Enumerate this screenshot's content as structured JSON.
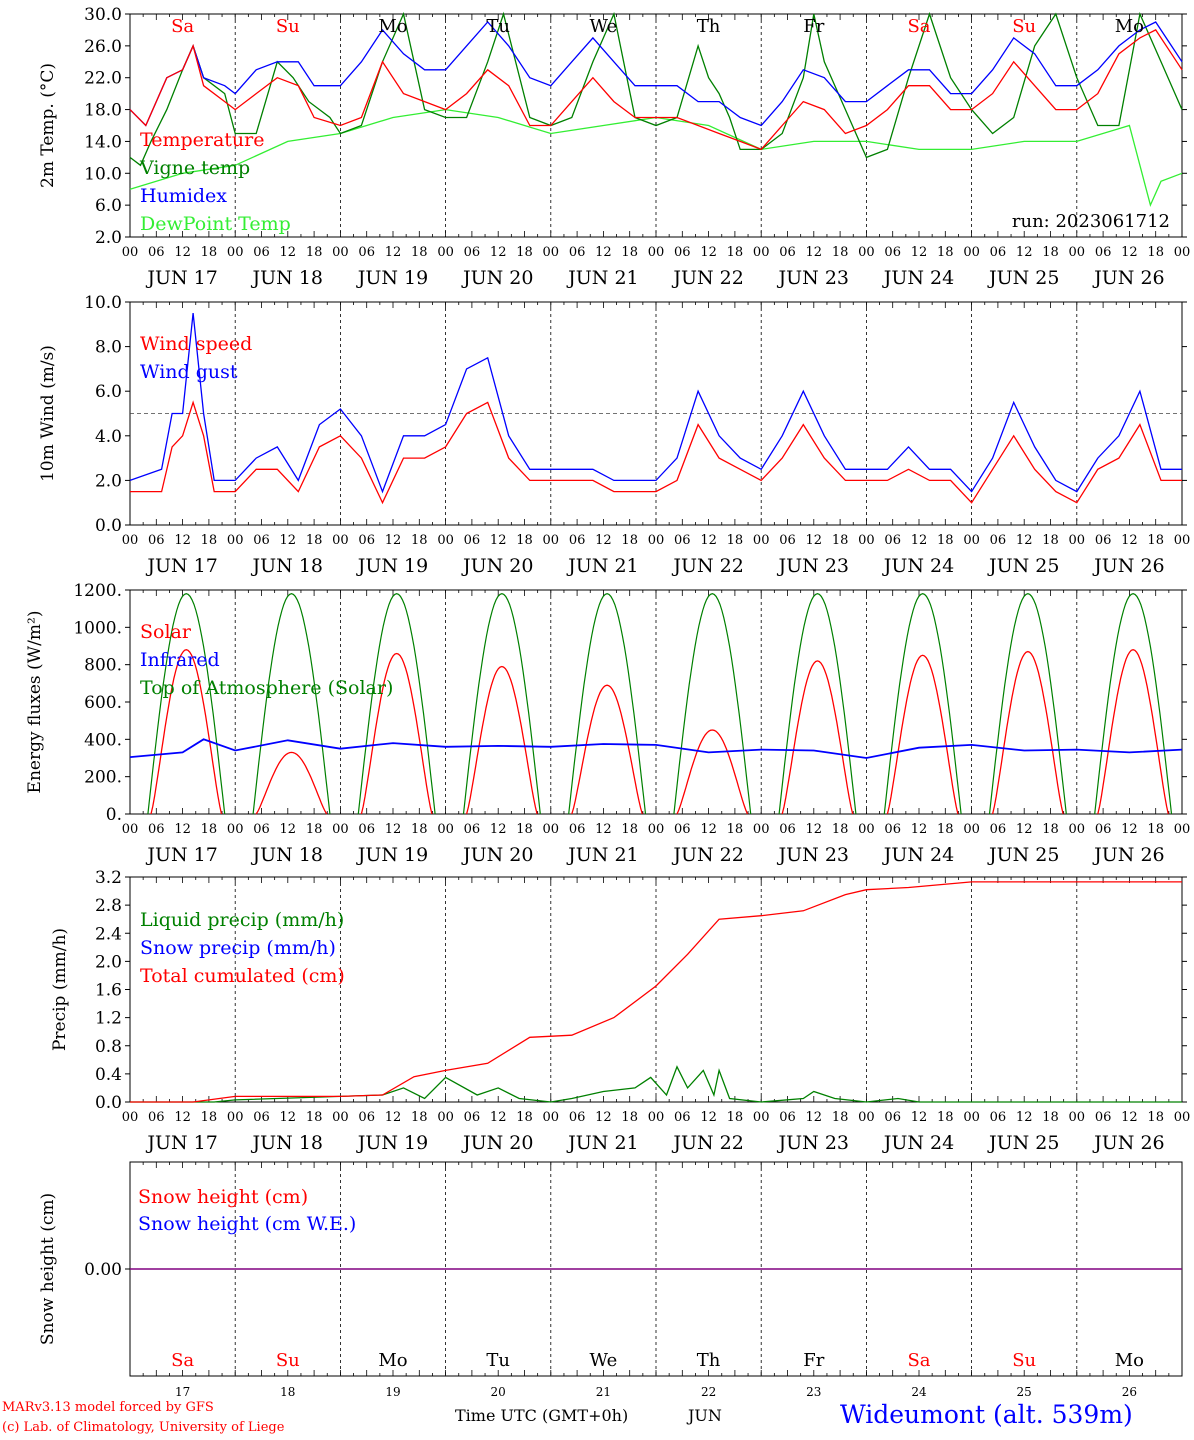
{
  "colors": {
    "red": "#ff0000",
    "green": "#008000",
    "blue": "#0000ff",
    "light_green": "#33ee33",
    "purple": "#800080",
    "black": "#000000"
  },
  "run_label": "run: 2023061712",
  "footer": {
    "model": "MARv3.13 model forced by GFS",
    "lab": "(c) Lab. of Climatology, University of Liege",
    "time_label": "Time UTC (GMT+0h)",
    "month": "JUN",
    "station": "Wideumont (alt. 539m)"
  },
  "days": {
    "date_labels": [
      "JUN 17",
      "JUN 18",
      "JUN 19",
      "JUN 20",
      "JUN 21",
      "JUN 22",
      "JUN 23",
      "JUN 24",
      "JUN 25",
      "JUN 26"
    ],
    "day_numbers": [
      "17",
      "18",
      "19",
      "20",
      "21",
      "22",
      "23",
      "24",
      "25",
      "26"
    ],
    "weekday_abbrev": [
      "Sa",
      "Su",
      "Mo",
      "Tu",
      "We",
      "Th",
      "Fr",
      "Sa",
      "Su",
      "Mo"
    ],
    "weekday_colors": [
      "#ff0000",
      "#ff0000",
      "#000000",
      "#000000",
      "#000000",
      "#000000",
      "#000000",
      "#ff0000",
      "#ff0000",
      "#000000"
    ],
    "hour_ticks": [
      "00",
      "06",
      "12",
      "18"
    ],
    "final_tick": "00"
  },
  "chart_data": [
    {
      "type": "line",
      "ylabel": "2m Temp. (°C)",
      "ylim": [
        2,
        30
      ],
      "yticks": [
        "2.0",
        "6.0",
        "10.0",
        "14.0",
        "18.0",
        "22.0",
        "26.0",
        "30.0"
      ],
      "x_unit": "days since 17 Jun 00 UTC",
      "series": [
        {
          "name": "Temperature",
          "color": "#ff0000",
          "x": [
            0,
            0.15,
            0.35,
            0.5,
            0.6,
            0.7,
            0.9,
            1.0,
            1.2,
            1.4,
            1.6,
            1.75,
            2.0,
            2.2,
            2.4,
            2.6,
            2.8,
            3.0,
            3.2,
            3.4,
            3.6,
            3.8,
            4.0,
            4.2,
            4.4,
            4.6,
            4.8,
            5.0,
            5.2,
            5.4,
            5.6,
            5.8,
            6.0,
            6.2,
            6.4,
            6.6,
            6.8,
            7.0,
            7.2,
            7.4,
            7.6,
            7.8,
            8.0,
            8.2,
            8.4,
            8.6,
            8.8,
            9.0,
            9.2,
            9.4,
            9.6,
            9.75,
            9.9,
            10.0
          ],
          "y": [
            18,
            16,
            22,
            23,
            26,
            21,
            19,
            18,
            20,
            22,
            21,
            17,
            16,
            17,
            24,
            20,
            19,
            18,
            20,
            23,
            21,
            16,
            16,
            19,
            22,
            19,
            17,
            17,
            17,
            16,
            15,
            14,
            13,
            16,
            19,
            18,
            15,
            16,
            18,
            21,
            21,
            18,
            18,
            20,
            24,
            21,
            18,
            18,
            20,
            25,
            27,
            28,
            25,
            23
          ]
        },
        {
          "name": "Vigne temp",
          "color": "#008000",
          "x": [
            0,
            0.1,
            0.2,
            0.35,
            0.5,
            0.6,
            0.7,
            0.9,
            1.0,
            1.2,
            1.4,
            1.55,
            1.7,
            1.9,
            2.0,
            2.2,
            2.4,
            2.6,
            2.8,
            3.0,
            3.2,
            3.4,
            3.55,
            3.8,
            4.0,
            4.2,
            4.4,
            4.6,
            4.8,
            5.0,
            5.2,
            5.4,
            5.5,
            5.6,
            5.7,
            5.8,
            6.0,
            6.2,
            6.4,
            6.5,
            6.6,
            6.8,
            7.0,
            7.2,
            7.4,
            7.6,
            7.8,
            8.0,
            8.2,
            8.4,
            8.6,
            8.8,
            9.0,
            9.2,
            9.4,
            9.6,
            9.8,
            10.0
          ],
          "y": [
            12,
            11,
            14,
            18,
            23,
            26,
            22,
            20,
            15,
            15,
            24,
            22,
            19,
            17,
            15,
            16,
            24,
            30,
            18,
            17,
            17,
            24,
            30,
            17,
            16,
            17,
            24,
            30,
            17,
            16,
            17,
            26,
            22,
            20,
            17,
            13,
            13,
            15,
            22,
            30,
            24,
            18,
            12,
            13,
            22,
            30,
            22,
            18,
            15,
            17,
            26,
            30,
            22,
            16,
            16,
            30,
            24,
            18
          ]
        },
        {
          "name": "Humidex",
          "color": "#0000ff",
          "x": [
            0,
            0.15,
            0.35,
            0.5,
            0.6,
            0.7,
            0.9,
            1.0,
            1.2,
            1.4,
            1.6,
            1.75,
            2.0,
            2.2,
            2.4,
            2.6,
            2.8,
            3.0,
            3.2,
            3.4,
            3.6,
            3.8,
            4.0,
            4.2,
            4.4,
            4.6,
            4.8,
            5.0,
            5.2,
            5.4,
            5.6,
            5.8,
            6.0,
            6.2,
            6.4,
            6.6,
            6.8,
            7.0,
            7.2,
            7.4,
            7.6,
            7.8,
            8.0,
            8.2,
            8.4,
            8.6,
            8.8,
            9.0,
            9.2,
            9.4,
            9.6,
            9.75,
            9.9,
            10.0
          ],
          "y": [
            18,
            16,
            22,
            23,
            26,
            22,
            21,
            20,
            23,
            24,
            24,
            21,
            21,
            24,
            28,
            25,
            23,
            23,
            26,
            29,
            26,
            22,
            21,
            24,
            27,
            24,
            21,
            21,
            21,
            19,
            19,
            17,
            16,
            19,
            23,
            22,
            19,
            19,
            21,
            23,
            23,
            20,
            20,
            23,
            27,
            25,
            21,
            21,
            23,
            26,
            28,
            29,
            26,
            24
          ]
        },
        {
          "name": "DewPoint Temp",
          "color": "#33ee33",
          "x": [
            0,
            0.5,
            1.0,
            1.5,
            2.0,
            2.5,
            3.0,
            3.5,
            4.0,
            4.5,
            5.0,
            5.5,
            6.0,
            6.5,
            7.0,
            7.5,
            8.0,
            8.5,
            9.0,
            9.5,
            9.7,
            9.8,
            10.0
          ],
          "y": [
            8,
            10,
            11,
            14,
            15,
            17,
            18,
            17,
            15,
            16,
            17,
            16,
            13,
            14,
            14,
            13,
            13,
            14,
            14,
            16,
            6,
            9,
            10
          ]
        }
      ]
    },
    {
      "type": "line",
      "ylabel": "10m Wind (m/s)",
      "ylim": [
        0,
        10
      ],
      "yticks": [
        "0.0",
        "2.0",
        "4.0",
        "6.0",
        "8.0",
        "10.0"
      ],
      "reference_line": 5,
      "x_unit": "days since 17 Jun 00 UTC",
      "series": [
        {
          "name": "Wind speed",
          "color": "#ff0000",
          "x": [
            0,
            0.3,
            0.4,
            0.5,
            0.6,
            0.7,
            0.8,
            1.0,
            1.2,
            1.4,
            1.6,
            1.8,
            2.0,
            2.2,
            2.4,
            2.6,
            2.8,
            3.0,
            3.2,
            3.4,
            3.6,
            3.8,
            4.0,
            4.2,
            4.4,
            4.6,
            4.8,
            5.0,
            5.2,
            5.4,
            5.6,
            5.8,
            6.0,
            6.2,
            6.4,
            6.6,
            6.8,
            7.0,
            7.2,
            7.4,
            7.6,
            7.8,
            8.0,
            8.2,
            8.4,
            8.6,
            8.8,
            9.0,
            9.2,
            9.4,
            9.6,
            9.8,
            10.0
          ],
          "y": [
            1.5,
            1.5,
            3.5,
            4,
            5.5,
            4,
            1.5,
            1.5,
            2.5,
            2.5,
            1.5,
            3.5,
            4,
            3,
            1,
            3,
            3,
            3.5,
            5,
            5.5,
            3,
            2,
            2,
            2,
            2,
            1.5,
            1.5,
            1.5,
            2,
            4.5,
            3,
            2.5,
            2,
            3,
            4.5,
            3,
            2,
            2,
            2,
            2.5,
            2,
            2,
            1,
            2.5,
            4,
            2.5,
            1.5,
            1,
            2.5,
            3,
            4.5,
            2,
            2
          ]
        },
        {
          "name": "Wind gust",
          "color": "#0000ff",
          "x": [
            0,
            0.3,
            0.4,
            0.5,
            0.6,
            0.7,
            0.8,
            1.0,
            1.2,
            1.4,
            1.6,
            1.8,
            2.0,
            2.2,
            2.4,
            2.6,
            2.8,
            3.0,
            3.2,
            3.4,
            3.6,
            3.8,
            4.0,
            4.2,
            4.4,
            4.6,
            4.8,
            5.0,
            5.2,
            5.4,
            5.6,
            5.8,
            6.0,
            6.2,
            6.4,
            6.6,
            6.8,
            7.0,
            7.2,
            7.4,
            7.6,
            7.8,
            8.0,
            8.2,
            8.4,
            8.6,
            8.8,
            9.0,
            9.2,
            9.4,
            9.6,
            9.8,
            10.0
          ],
          "y": [
            2,
            2.5,
            5,
            5,
            9.5,
            5,
            2,
            2,
            3,
            3.5,
            2,
            4.5,
            5.2,
            4,
            1.5,
            4,
            4,
            4.5,
            7,
            7.5,
            4,
            2.5,
            2.5,
            2.5,
            2.5,
            2,
            2,
            2,
            3,
            6,
            4,
            3,
            2.5,
            4,
            6,
            4,
            2.5,
            2.5,
            2.5,
            3.5,
            2.5,
            2.5,
            1.5,
            3,
            5.5,
            3.5,
            2,
            1.5,
            3,
            4,
            6,
            2.5,
            2.5
          ]
        }
      ]
    },
    {
      "type": "line",
      "ylabel": "Energy fluxes (W/m²)",
      "ylim": [
        0,
        1200
      ],
      "yticks": [
        "0.",
        "200.",
        "400.",
        "600.",
        "800.",
        "1000.",
        "1200."
      ],
      "x_unit": "days since 17 Jun 00 UTC",
      "day_peaks": {
        "top_of_atmosphere": [
          1180,
          1180,
          1180,
          1180,
          1180,
          1180,
          1180,
          1180,
          1180,
          1180
        ],
        "solar": [
          880,
          330,
          860,
          790,
          690,
          450,
          820,
          850,
          870,
          880
        ]
      },
      "series": [
        {
          "name": "Solar",
          "color": "#ff0000"
        },
        {
          "name": "Infrared",
          "color": "#0000ff",
          "x": [
            0,
            0.5,
            0.7,
            1.0,
            1.5,
            2.0,
            2.5,
            3.0,
            3.5,
            4.0,
            4.5,
            5.0,
            5.5,
            6.0,
            6.5,
            7.0,
            7.5,
            8.0,
            8.5,
            9.0,
            9.5,
            10.0
          ],
          "y": [
            305,
            330,
            400,
            340,
            395,
            350,
            380,
            360,
            365,
            360,
            375,
            370,
            330,
            345,
            340,
            300,
            355,
            370,
            340,
            345,
            330,
            345
          ]
        },
        {
          "name": "Top of Atmosphere (Solar)",
          "color": "#008000"
        }
      ]
    },
    {
      "type": "line",
      "ylabel": "Precip (mm/h)",
      "ylim": [
        0,
        3.2
      ],
      "yticks": [
        "0.0",
        "0.4",
        "0.8",
        "1.2",
        "1.6",
        "2.0",
        "2.4",
        "2.8",
        "3.2"
      ],
      "x_unit": "days since 17 Jun 00 UTC",
      "series": [
        {
          "name": "Liquid precip (mm/h)",
          "color": "#008000",
          "x": [
            0,
            0.8,
            1.0,
            2.4,
            2.6,
            2.8,
            3.0,
            3.3,
            3.5,
            3.7,
            4.0,
            4.2,
            4.5,
            4.8,
            4.95,
            5.1,
            5.2,
            5.3,
            5.45,
            5.55,
            5.6,
            5.7,
            6.0,
            6.4,
            6.5,
            6.7,
            7.0,
            7.3,
            7.5,
            10.0
          ],
          "y": [
            0,
            0,
            0.03,
            0.1,
            0.2,
            0.05,
            0.35,
            0.1,
            0.2,
            0.05,
            0,
            0.05,
            0.15,
            0.2,
            0.35,
            0.1,
            0.5,
            0.2,
            0.45,
            0.1,
            0.45,
            0.05,
            0,
            0.05,
            0.15,
            0.05,
            0,
            0.05,
            0,
            0
          ]
        },
        {
          "name": "Snow precip (mm/h)",
          "color": "#0000ff"
        },
        {
          "name": "Total cumulated (cm)",
          "color": "#ff0000",
          "x": [
            0,
            0.6,
            1.0,
            2.0,
            2.4,
            2.7,
            3.0,
            3.4,
            3.8,
            4.2,
            4.6,
            5.0,
            5.3,
            5.6,
            6.0,
            6.4,
            6.8,
            7.0,
            7.4,
            8.0,
            10.0
          ],
          "y": [
            0,
            0,
            0.08,
            0.08,
            0.1,
            0.36,
            0.45,
            0.55,
            0.92,
            0.95,
            1.2,
            1.65,
            2.1,
            2.6,
            2.65,
            2.72,
            2.95,
            3.02,
            3.05,
            3.13,
            3.13
          ]
        }
      ]
    },
    {
      "type": "line",
      "ylabel": "Snow height (cm)",
      "yticks": [
        "0.00"
      ],
      "x_unit": "days since 17 Jun 00 UTC",
      "series": [
        {
          "name": "Snow height (cm)",
          "color": "#ff0000",
          "x": [
            0,
            10
          ],
          "y": [
            0,
            0
          ]
        },
        {
          "name": "Snow height (cm W.E.)",
          "color": "#0000ff",
          "x": [
            0,
            10
          ],
          "y": [
            0,
            0
          ]
        }
      ]
    }
  ]
}
